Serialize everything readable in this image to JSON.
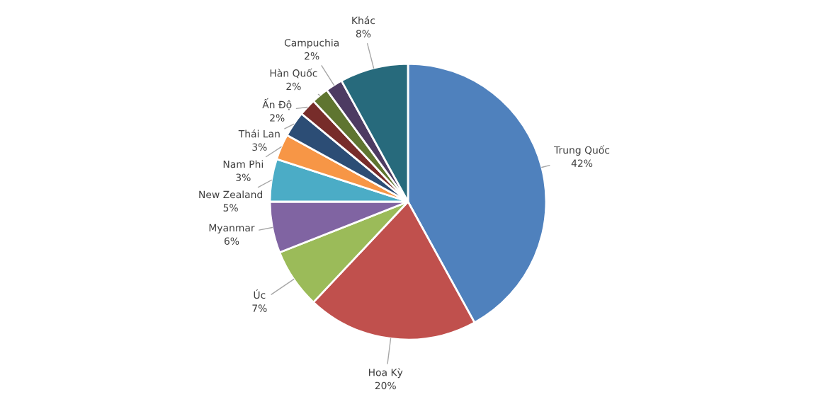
{
  "chart_data": {
    "type": "pie",
    "categories": [
      "Trung Quốc",
      "Hoa Kỳ",
      "Úc",
      "Myanmar",
      "New Zealand",
      "Nam Phi",
      "Thái Lan",
      "Ấn Độ",
      "Hàn Quốc",
      "Campuchia",
      "Khác"
    ],
    "values": [
      42,
      20,
      7,
      6,
      5,
      3,
      3,
      2,
      2,
      2,
      8
    ],
    "value_labels": [
      "42%",
      "20%",
      "7%",
      "6%",
      "5%",
      "3%",
      "3%",
      "2%",
      "2%",
      "2%",
      "8%"
    ],
    "colors": [
      "#4f81bd",
      "#c0504d",
      "#9bbb59",
      "#8064a2",
      "#4bacc6",
      "#f79646",
      "#2c4d75",
      "#772c2a",
      "#5f7530",
      "#4d3b62",
      "#276a7c"
    ]
  }
}
